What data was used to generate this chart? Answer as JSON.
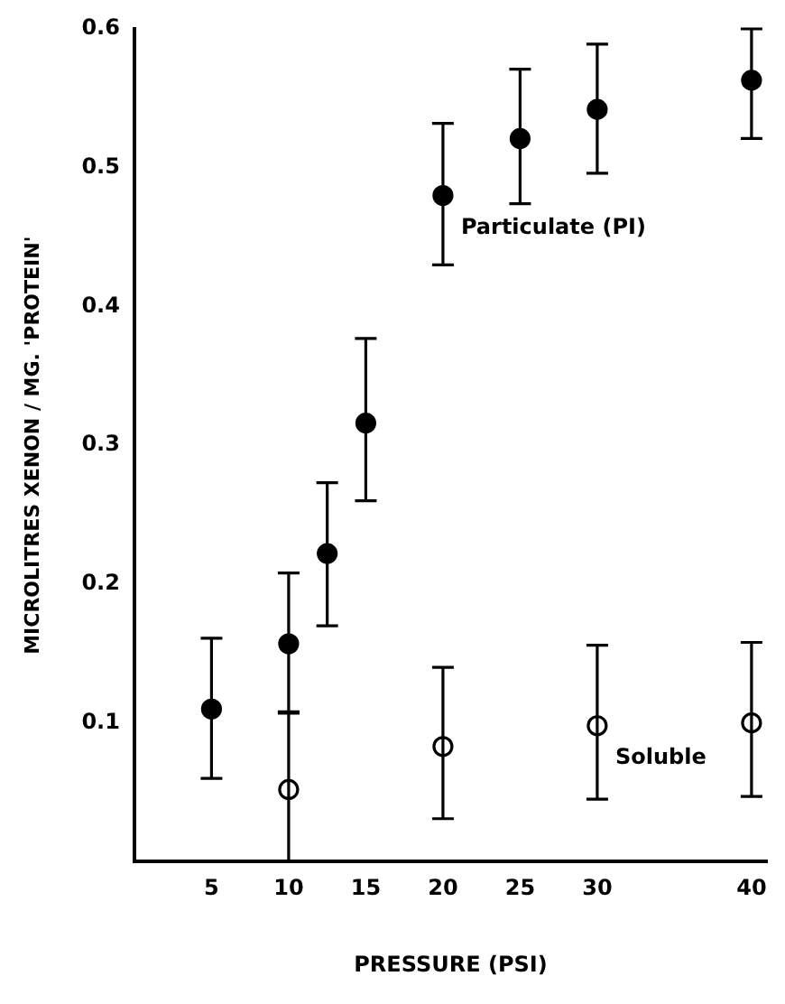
{
  "chart_data": {
    "type": "scatter",
    "xlabel": "PRESSURE (PSI)",
    "ylabel": "MICROLITRES XENON / MG. 'PROTEIN'",
    "xlim": [
      0,
      41
    ],
    "xticks": [
      5,
      10,
      15,
      20,
      25,
      30,
      40
    ],
    "ylim": [
      0,
      0.6
    ],
    "yticks": [
      0.1,
      0.2,
      0.3,
      0.4,
      0.5,
      0.6
    ],
    "grid": false,
    "legend": false,
    "marker": "circle",
    "series": [
      {
        "name": "Particulate (PI)",
        "color": "#000000",
        "x": [
          5,
          10,
          12.5,
          15,
          20,
          25,
          30,
          40
        ],
        "values": [
          0.11,
          0.157,
          0.222,
          0.316,
          0.48,
          0.521,
          0.542,
          0.563
        ],
        "errors": [
          [
            0.06,
            0.161
          ],
          [
            0.107,
            0.208
          ],
          [
            0.17,
            0.273
          ],
          [
            0.26,
            0.377
          ],
          [
            0.43,
            0.532
          ],
          [
            0.474,
            0.571
          ],
          [
            0.496,
            0.589
          ],
          [
            0.521,
            0.6
          ]
        ]
      },
      {
        "name": "Soluble",
        "color": "#000000",
        "x": [
          10,
          20,
          30,
          40
        ],
        "values": [
          0.052,
          0.083,
          0.098,
          0.1
        ],
        "errors": [
          [
            0,
            0.108
          ],
          [
            0.031,
            0.14
          ],
          [
            0.045,
            0.156
          ],
          [
            0.047,
            0.158
          ]
        ]
      }
    ]
  }
}
